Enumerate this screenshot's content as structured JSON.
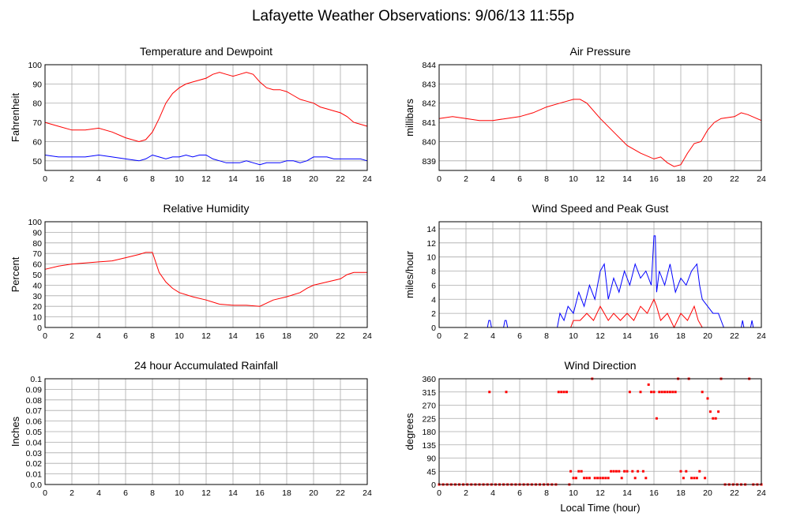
{
  "page_title": "Lafayette Weather Observations: 9/06/13 11:55p",
  "x_axis_label": "Local Time (hour)",
  "colors": {
    "red": "#ff0000",
    "blue": "#0000ff",
    "grid": "#aaaaaa",
    "frame": "#000000"
  },
  "chart_data": [
    {
      "id": "temp",
      "type": "line",
      "title": "Temperature and Dewpoint",
      "xlabel": "",
      "ylabel": "Fahrenheit",
      "xlim": [
        0,
        24
      ],
      "ylim": [
        45,
        100
      ],
      "yticks": [
        "50",
        "60",
        "70",
        "80",
        "90",
        "100"
      ],
      "xticks": [
        "0",
        "2",
        "4",
        "6",
        "8",
        "10",
        "12",
        "14",
        "16",
        "18",
        "20",
        "22",
        "24"
      ],
      "series": [
        {
          "color": "#ff0000",
          "x": [
            0,
            1,
            2,
            3,
            4,
            5,
            6,
            7,
            7.5,
            8,
            8.5,
            9,
            9.5,
            10,
            10.5,
            11,
            11.5,
            12,
            12.5,
            13,
            13.5,
            14,
            14.5,
            15,
            15.5,
            16,
            16.5,
            17,
            17.5,
            18,
            18.5,
            19,
            19.5,
            20,
            20.5,
            21,
            21.5,
            22,
            22.5,
            23,
            23.5,
            24
          ],
          "y": [
            70,
            68,
            66,
            66,
            67,
            65,
            62,
            60,
            61,
            65,
            72,
            80,
            85,
            88,
            90,
            91,
            92,
            93,
            95,
            96,
            95,
            94,
            95,
            96,
            95,
            91,
            88,
            87,
            87,
            86,
            84,
            82,
            81,
            80,
            78,
            77,
            76,
            75,
            73,
            70,
            69,
            68
          ]
        },
        {
          "color": "#0000ff",
          "x": [
            0,
            1,
            2,
            3,
            4,
            5,
            6,
            7,
            7.5,
            8,
            8.5,
            9,
            9.5,
            10,
            10.5,
            11,
            11.5,
            12,
            12.5,
            13,
            13.5,
            14,
            14.5,
            15,
            15.5,
            16,
            16.5,
            17,
            17.5,
            18,
            18.5,
            19,
            19.5,
            20,
            20.5,
            21,
            21.5,
            22,
            22.5,
            23,
            23.5,
            24
          ],
          "y": [
            53,
            52,
            52,
            52,
            53,
            52,
            51,
            50,
            51,
            53,
            52,
            51,
            52,
            52,
            53,
            52,
            53,
            53,
            51,
            50,
            49,
            49,
            49,
            50,
            49,
            48,
            49,
            49,
            49,
            50,
            50,
            49,
            50,
            52,
            52,
            52,
            51,
            51,
            51,
            51,
            51,
            50
          ]
        }
      ]
    },
    {
      "id": "pressure",
      "type": "line",
      "title": "Air Pressure",
      "xlabel": "",
      "ylabel": "millibars",
      "xlim": [
        0,
        24
      ],
      "ylim": [
        838.5,
        844
      ],
      "yticks": [
        "839",
        "840",
        "841",
        "842",
        "843",
        "844"
      ],
      "xticks": [
        "0",
        "2",
        "4",
        "6",
        "8",
        "10",
        "12",
        "14",
        "16",
        "18",
        "20",
        "22",
        "24"
      ],
      "series": [
        {
          "color": "#ff0000",
          "x": [
            0,
            1,
            2,
            3,
            4,
            5,
            6,
            7,
            8,
            9,
            9.5,
            10,
            10.5,
            11,
            12,
            13,
            14,
            15,
            16,
            16.5,
            17,
            17.5,
            18,
            18.5,
            19,
            19.5,
            20,
            20.5,
            21,
            22,
            22.5,
            23,
            24
          ],
          "y": [
            841.2,
            841.3,
            841.2,
            841.1,
            841.1,
            841.2,
            841.3,
            841.5,
            841.8,
            842.0,
            842.1,
            842.2,
            842.2,
            842.0,
            841.2,
            840.5,
            839.8,
            839.4,
            839.1,
            839.2,
            838.9,
            838.7,
            838.8,
            839.4,
            839.9,
            840.0,
            840.6,
            841.0,
            841.2,
            841.3,
            841.5,
            841.4,
            841.1
          ]
        }
      ]
    },
    {
      "id": "humidity",
      "type": "line",
      "title": "Relative Humidity",
      "xlabel": "",
      "ylabel": "Percent",
      "xlim": [
        0,
        24
      ],
      "ylim": [
        0,
        100
      ],
      "yticks": [
        "0",
        "10",
        "20",
        "30",
        "40",
        "50",
        "60",
        "70",
        "80",
        "90",
        "100"
      ],
      "xticks": [
        "0",
        "2",
        "4",
        "6",
        "8",
        "10",
        "12",
        "14",
        "16",
        "18",
        "20",
        "22",
        "24"
      ],
      "series": [
        {
          "color": "#ff0000",
          "x": [
            0,
            1,
            2,
            3,
            4,
            5,
            6,
            7,
            7.5,
            8,
            8.5,
            9,
            9.5,
            10,
            11,
            12,
            13,
            14,
            15,
            16,
            16.5,
            17,
            18,
            19,
            19.5,
            20,
            21,
            22,
            22.5,
            23,
            24
          ],
          "y": [
            55,
            58,
            60,
            61,
            62,
            63,
            66,
            69,
            71,
            71,
            52,
            43,
            37,
            33,
            29,
            26,
            22,
            21,
            21,
            20,
            23,
            26,
            29,
            33,
            37,
            40,
            43,
            46,
            50,
            52,
            52
          ]
        }
      ]
    },
    {
      "id": "wind",
      "type": "line",
      "title": "Wind Speed and Peak Gust",
      "xlabel": "",
      "ylabel": "miles/hour",
      "xlim": [
        0,
        24
      ],
      "ylim": [
        0,
        15
      ],
      "yticks": [
        "0",
        "2",
        "4",
        "6",
        "8",
        "10",
        "12",
        "14"
      ],
      "xticks": [
        "0",
        "2",
        "4",
        "6",
        "8",
        "10",
        "12",
        "14",
        "16",
        "18",
        "20",
        "22",
        "24"
      ],
      "series": [
        {
          "color": "#0000ff",
          "x": [
            0,
            3.6,
            3.7,
            3.8,
            3.9,
            4.8,
            4.9,
            5.0,
            5.1,
            8.8,
            9.0,
            9.3,
            9.6,
            10.0,
            10.4,
            10.8,
            11.2,
            11.6,
            12.0,
            12.3,
            12.6,
            13.0,
            13.4,
            13.8,
            14.2,
            14.6,
            15.0,
            15.4,
            15.8,
            16.0,
            16.1,
            16.2,
            16.4,
            16.8,
            17.2,
            17.6,
            18.0,
            18.4,
            18.8,
            19.2,
            19.4,
            19.6,
            20.0,
            20.4,
            20.8,
            21.2,
            22.5,
            22.6,
            22.7,
            23.2,
            23.3,
            23.4,
            24
          ],
          "y": [
            0,
            0,
            1,
            1,
            0,
            0,
            1,
            1,
            0,
            0,
            2,
            1,
            3,
            2,
            5,
            3,
            6,
            4,
            8,
            9,
            4,
            7,
            5,
            8,
            6,
            9,
            7,
            8,
            6,
            13,
            13,
            5,
            8,
            6,
            9,
            5,
            7,
            6,
            8,
            9,
            6,
            4,
            3,
            2,
            2,
            0,
            0,
            1,
            0,
            0,
            1,
            0,
            0
          ]
        },
        {
          "color": "#ff0000",
          "x": [
            0,
            9.8,
            10.0,
            10.5,
            11.0,
            11.5,
            12.0,
            12.3,
            12.6,
            13.0,
            13.5,
            14.0,
            14.5,
            15.0,
            15.5,
            16.0,
            16.2,
            16.5,
            17.0,
            17.5,
            18.0,
            18.5,
            19.0,
            19.3,
            19.6,
            20.0,
            24
          ],
          "y": [
            0,
            0,
            1,
            1,
            2,
            1,
            3,
            2,
            1,
            2,
            1,
            2,
            1,
            3,
            2,
            4,
            3,
            1,
            2,
            0,
            2,
            1,
            3,
            1,
            0,
            0,
            0
          ]
        }
      ]
    },
    {
      "id": "rain",
      "type": "line",
      "title": "24 hour Accumulated Rainfall",
      "xlabel": "",
      "ylabel": "Inches",
      "xlim": [
        0,
        24
      ],
      "ylim": [
        0,
        0.1
      ],
      "yticks": [
        "0.0",
        "0.01",
        "0.02",
        "0.03",
        "0.04",
        "0.05",
        "0.06",
        "0.07",
        "0.08",
        "0.09",
        "0.1"
      ],
      "xticks": [
        "0",
        "2",
        "4",
        "6",
        "8",
        "10",
        "12",
        "14",
        "16",
        "18",
        "20",
        "22",
        "24"
      ],
      "series": [
        {
          "color": "#ff0000",
          "x": [
            0,
            24
          ],
          "y": [
            0,
            0
          ]
        }
      ]
    },
    {
      "id": "direction",
      "type": "scatter",
      "title": "Wind Direction",
      "xlabel": "Local Time (hour)",
      "ylabel": "degrees",
      "xlim": [
        0,
        24
      ],
      "ylim": [
        0,
        360
      ],
      "yticks": [
        "0",
        "45",
        "90",
        "135",
        "180",
        "225",
        "270",
        "315",
        "360"
      ],
      "xticks": [
        "0",
        "2",
        "4",
        "6",
        "8",
        "10",
        "12",
        "14",
        "16",
        "18",
        "20",
        "22",
        "24"
      ],
      "series": [
        {
          "color": "#ff0000",
          "x": [
            0,
            0.3,
            0.6,
            0.9,
            1.2,
            1.5,
            1.8,
            2.1,
            2.4,
            2.7,
            3.0,
            3.3,
            3.6,
            3.75,
            3.9,
            4.2,
            4.5,
            4.8,
            5.0,
            5.1,
            5.4,
            5.7,
            6.0,
            6.3,
            6.6,
            6.9,
            7.2,
            7.5,
            7.8,
            8.1,
            8.4,
            8.7,
            8.9,
            9.1,
            9.3,
            9.5,
            9.7,
            9.8,
            10.0,
            10.2,
            10.4,
            10.6,
            10.8,
            11.0,
            11.2,
            11.4,
            11.6,
            11.8,
            12.0,
            12.2,
            12.4,
            12.6,
            12.8,
            13.0,
            13.2,
            13.4,
            13.6,
            13.8,
            14.0,
            14.2,
            14.4,
            14.6,
            14.8,
            15.0,
            15.2,
            15.4,
            15.6,
            15.8,
            16.0,
            16.2,
            16.4,
            16.6,
            16.8,
            17.0,
            17.2,
            17.4,
            17.6,
            17.8,
            18.0,
            18.2,
            18.4,
            18.6,
            18.8,
            19.0,
            19.2,
            19.4,
            19.6,
            19.8,
            20.0,
            20.2,
            20.4,
            20.6,
            20.8,
            21.0,
            21.3,
            21.6,
            21.9,
            22.2,
            22.5,
            22.8,
            23.1,
            23.4,
            23.7,
            24.0
          ],
          "y": [
            0,
            0,
            0,
            0,
            0,
            0,
            0,
            0,
            0,
            0,
            0,
            0,
            0,
            315,
            0,
            0,
            0,
            0,
            315,
            0,
            0,
            0,
            0,
            0,
            0,
            0,
            0,
            0,
            0,
            0,
            0,
            0,
            315,
            315,
            315,
            315,
            0,
            45,
            22,
            22,
            45,
            45,
            22,
            22,
            22,
            360,
            22,
            22,
            22,
            22,
            22,
            22,
            45,
            45,
            45,
            45,
            22,
            45,
            45,
            315,
            45,
            22,
            45,
            315,
            45,
            22,
            340,
            315,
            315,
            225,
            315,
            315,
            315,
            315,
            315,
            315,
            315,
            360,
            45,
            22,
            45,
            360,
            22,
            22,
            22,
            45,
            315,
            22,
            293,
            248,
            225,
            225,
            248,
            360,
            0,
            0,
            0,
            0,
            0,
            0,
            360,
            0,
            0,
            0
          ]
        }
      ]
    }
  ]
}
